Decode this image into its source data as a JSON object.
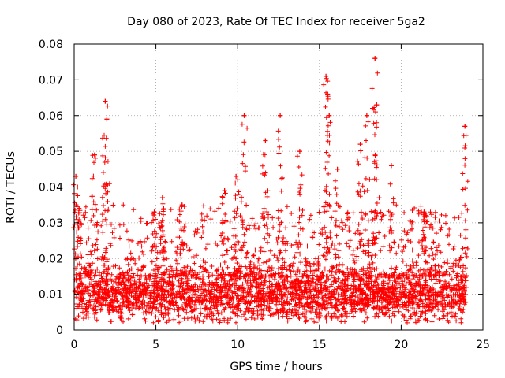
{
  "chart_data": {
    "type": "scatter",
    "title": "Day 080 of 2023, Rate Of TEC Index for receiver 5ga2",
    "xlabel": "GPS time / hours",
    "ylabel": "ROTI / TECUs",
    "xlim": [
      0,
      25
    ],
    "ylim": [
      0,
      0.08
    ],
    "x_ticks": [
      0,
      5,
      10,
      15,
      20,
      25
    ],
    "x_tick_labels": [
      "0",
      "5",
      "10",
      "15",
      "20",
      "25"
    ],
    "y_ticks": [
      0,
      0.01,
      0.02,
      0.03,
      0.04,
      0.05,
      0.06,
      0.07,
      0.08
    ],
    "y_tick_labels": [
      "0",
      "0.01",
      "0.02",
      "0.03",
      "0.04",
      "0.05",
      "0.06",
      "0.07",
      "0.08"
    ],
    "grid": true,
    "marker": "+",
    "color": "#ff0000",
    "series": [
      {
        "name": "ROTI",
        "time_range_hours": [
          0,
          24
        ],
        "baseline_typical": 0.01,
        "baseline_range": [
          0.002,
          0.02
        ],
        "sample_count": 2600,
        "notable_peaks": [
          {
            "x": 0.1,
            "y": 0.043
          },
          {
            "x": 0.3,
            "y": 0.034
          },
          {
            "x": 1.25,
            "y": 0.049
          },
          {
            "x": 1.9,
            "y": 0.064
          },
          {
            "x": 2.0,
            "y": 0.059
          },
          {
            "x": 4.9,
            "y": 0.033
          },
          {
            "x": 5.4,
            "y": 0.037
          },
          {
            "x": 6.6,
            "y": 0.035
          },
          {
            "x": 9.2,
            "y": 0.039
          },
          {
            "x": 9.9,
            "y": 0.043
          },
          {
            "x": 10.4,
            "y": 0.06
          },
          {
            "x": 11.7,
            "y": 0.053
          },
          {
            "x": 12.6,
            "y": 0.06
          },
          {
            "x": 13.8,
            "y": 0.05
          },
          {
            "x": 15.4,
            "y": 0.071
          },
          {
            "x": 15.5,
            "y": 0.066
          },
          {
            "x": 15.6,
            "y": 0.06
          },
          {
            "x": 16.1,
            "y": 0.045
          },
          {
            "x": 17.5,
            "y": 0.052
          },
          {
            "x": 17.9,
            "y": 0.06
          },
          {
            "x": 18.4,
            "y": 0.076
          },
          {
            "x": 18.5,
            "y": 0.063
          },
          {
            "x": 19.4,
            "y": 0.046
          },
          {
            "x": 21.4,
            "y": 0.033
          },
          {
            "x": 23.9,
            "y": 0.057
          }
        ]
      }
    ]
  }
}
